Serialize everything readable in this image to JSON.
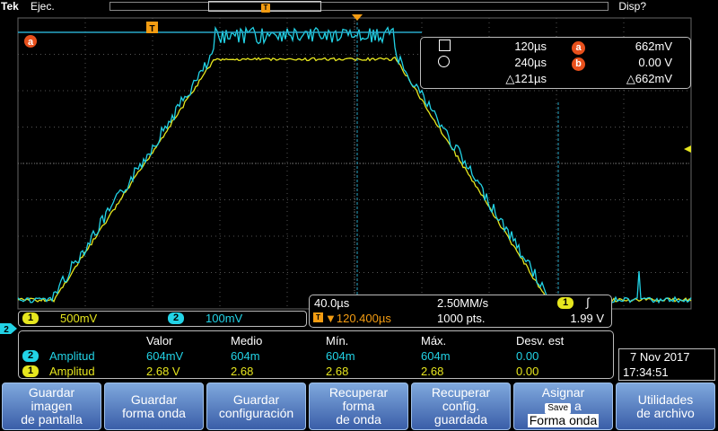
{
  "topbar": {
    "brand": "Tek",
    "run_state": "Ejec.",
    "display_label": "Disp?",
    "trigger_marker": "T"
  },
  "screen": {
    "cursor_a_label": "a",
    "trigger_marker_label": "T",
    "ch2_ground_label": "2",
    "colors": {
      "ch1": "#e6e61e",
      "ch2": "#22d3e6",
      "cursor": "#28a8c8",
      "grid": "#666666",
      "trigger": "#f39c12"
    }
  },
  "cursor_readout": {
    "row1": {
      "time": "120µs",
      "badge": "a",
      "value": "662mV"
    },
    "row2": {
      "time": "240µs",
      "badge": "b",
      "value": "0.00 V"
    },
    "row3": {
      "delta_time": "△121µs",
      "delta_value": "△662mV"
    }
  },
  "channels": {
    "ch1": {
      "num": "1",
      "scale": "500mV"
    },
    "ch2": {
      "num": "2",
      "scale": "100mV"
    }
  },
  "timebase": {
    "horizontal": "40.0µs",
    "sample_rate": "2.50MM/s",
    "trigger_source": "1",
    "trigger_slope": "∫",
    "trigger_position": "▼120.400µs",
    "record_length": "1000 pts.",
    "trigger_level": "1.99 V"
  },
  "measurements": {
    "headers": [
      "Valor",
      "Medio",
      "Mín.",
      "Máx.",
      "Desv. est"
    ],
    "rows": [
      {
        "ch": "2",
        "name": "Amplitud",
        "values": [
          "604mV",
          "604m",
          "604m",
          "604m",
          "0.00"
        ],
        "color": "#22d3e6"
      },
      {
        "ch": "1",
        "name": "Amplitud",
        "values": [
          "2.68 V",
          "2.68",
          "2.68",
          "2.68",
          "0.00"
        ],
        "color": "#e6e61e"
      }
    ]
  },
  "datetime": {
    "date": "7 Nov 2017",
    "time": "17:34:51"
  },
  "menu": [
    {
      "id": "save-screen",
      "label": "Guardar\nimagen\nde pantalla"
    },
    {
      "id": "save-waveform",
      "label": "Guardar\nforma onda"
    },
    {
      "id": "save-setup",
      "label": "Guardar\nconfiguración"
    },
    {
      "id": "recall-waveform",
      "label": "Recuperar\nforma\nde onda"
    },
    {
      "id": "recall-setup",
      "label": "Recuperar\nconfig.\nguardada"
    },
    {
      "id": "assign-save",
      "label_top": "Asignar",
      "save_chip": "Save",
      "label_a": "a",
      "label_bottom": "Forma onda"
    },
    {
      "id": "file-utilities",
      "label": "Utilidades\nde archivo"
    }
  ]
}
